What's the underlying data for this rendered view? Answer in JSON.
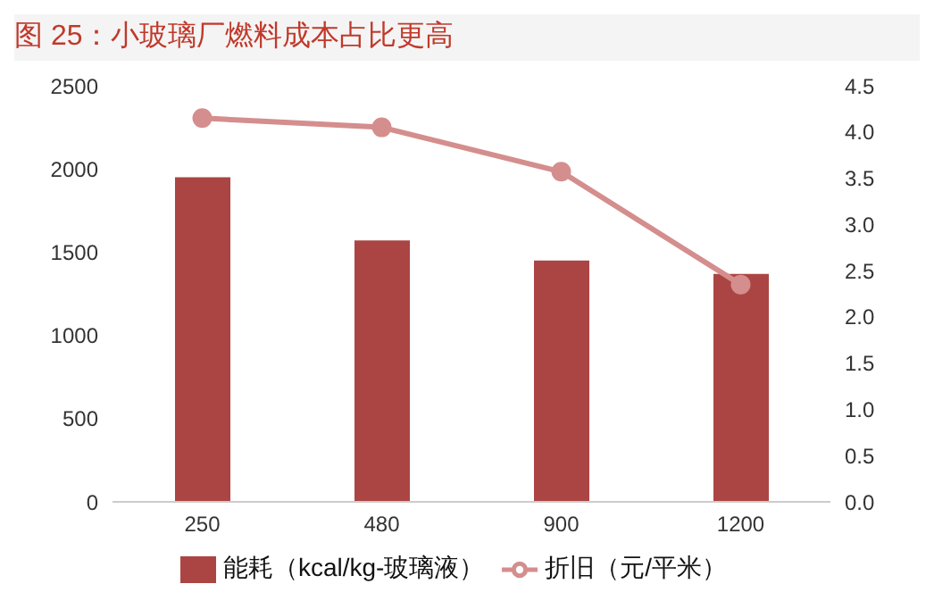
{
  "chart_data": {
    "type": "bar",
    "title": "图 25：小玻璃厂燃料成本占比更高",
    "categories": [
      "250",
      "480",
      "900",
      "1200"
    ],
    "series": [
      {
        "name": "能耗（kcal/kg-玻璃液）",
        "color": "#ab4543",
        "values": [
          1950,
          1570,
          1450,
          1370
        ]
      },
      {
        "name": "折旧（元/平米）",
        "type": "line",
        "axis": "y2",
        "color": "#d48e8d",
        "marker": "circle",
        "values": [
          4.15,
          4.05,
          3.57,
          2.35
        ]
      }
    ],
    "ylim": [
      0,
      2500
    ],
    "yticks": [
      0,
      500,
      1000,
      1500,
      2000,
      2500
    ],
    "y2lim": [
      0,
      4.5
    ],
    "y2ticks": [
      {
        "value": 0,
        "label": "0.0"
      },
      {
        "value": 0.5,
        "label": "0.5"
      },
      {
        "value": 1,
        "label": "1.0"
      },
      {
        "value": 1.5,
        "label": "1.5"
      },
      {
        "value": 2,
        "label": "2.0"
      },
      {
        "value": 2.5,
        "label": "2.5"
      },
      {
        "value": 3,
        "label": "3.0"
      },
      {
        "value": 3.5,
        "label": "3.5"
      },
      {
        "value": 4,
        "label": "4.0"
      },
      {
        "value": 4.5,
        "label": "4.5"
      }
    ],
    "grid": false,
    "legend": "bottom"
  }
}
